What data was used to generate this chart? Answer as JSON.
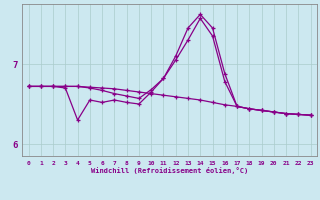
{
  "title": "",
  "xlabel": "Windchill (Refroidissement éolien,°C)",
  "background_color": "#cce8f0",
  "line_color": "#880088",
  "grid_color": "#aacccc",
  "xlim": [
    -0.5,
    23.5
  ],
  "ylim": [
    5.85,
    7.75
  ],
  "yticks": [
    6,
    7
  ],
  "xticks": [
    0,
    1,
    2,
    3,
    4,
    5,
    6,
    7,
    8,
    9,
    10,
    11,
    12,
    13,
    14,
    15,
    16,
    17,
    18,
    19,
    20,
    21,
    22,
    23
  ],
  "series": [
    {
      "x": [
        0,
        1,
        2,
        3,
        4,
        5,
        6,
        7,
        8,
        9,
        10,
        11,
        12,
        13,
        14,
        15,
        16,
        17,
        18,
        19,
        20,
        21,
        22,
        23
      ],
      "y": [
        6.72,
        6.72,
        6.72,
        6.72,
        6.72,
        6.71,
        6.7,
        6.69,
        6.67,
        6.65,
        6.63,
        6.61,
        6.59,
        6.57,
        6.55,
        6.52,
        6.49,
        6.47,
        6.44,
        6.42,
        6.4,
        6.38,
        6.37,
        6.36
      ]
    },
    {
      "x": [
        0,
        1,
        2,
        3,
        4,
        5,
        6,
        7,
        8,
        9,
        10,
        11,
        12,
        13,
        14,
        15,
        16,
        17,
        18,
        19,
        20,
        21,
        22,
        23
      ],
      "y": [
        6.72,
        6.72,
        6.72,
        6.7,
        6.3,
        6.55,
        6.52,
        6.55,
        6.52,
        6.5,
        6.65,
        6.82,
        7.1,
        7.45,
        7.62,
        7.45,
        6.88,
        6.47,
        6.44,
        6.42,
        6.4,
        6.38,
        6.37,
        6.36
      ]
    },
    {
      "x": [
        0,
        1,
        2,
        3,
        4,
        5,
        6,
        7,
        8,
        9,
        10,
        11,
        12,
        13,
        14,
        15,
        16,
        17,
        18,
        19,
        20,
        21,
        22,
        23
      ],
      "y": [
        6.72,
        6.72,
        6.72,
        6.72,
        6.72,
        6.7,
        6.67,
        6.63,
        6.6,
        6.57,
        6.68,
        6.82,
        7.05,
        7.3,
        7.57,
        7.35,
        6.78,
        6.47,
        6.44,
        6.42,
        6.4,
        6.38,
        6.37,
        6.36
      ]
    }
  ]
}
